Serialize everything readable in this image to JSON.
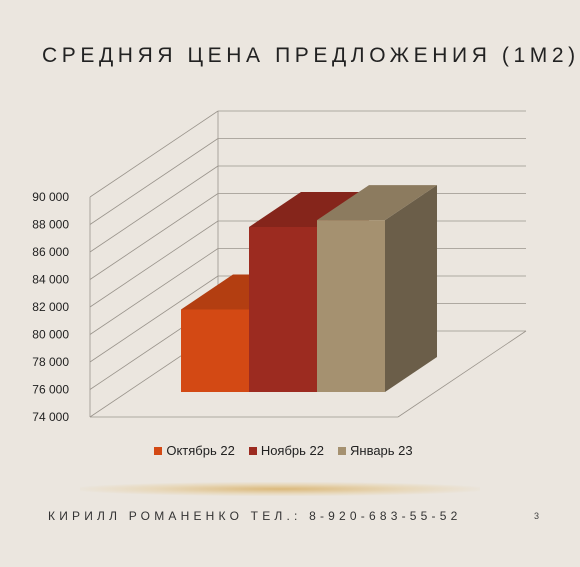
{
  "slide": {
    "title": "СРЕДНЯЯ ЦЕНА ПРЕДЛОЖЕНИЯ (1М2)",
    "footer": "КИРИЛЛ РОМАНЕНКО ТЕЛ.: 8-920-683-55-52",
    "page_number": "3"
  },
  "chart_data": {
    "type": "bar",
    "title": "",
    "xlabel": "",
    "ylabel": "",
    "ylim": [
      74000,
      90000
    ],
    "yticks": [
      74000,
      76000,
      78000,
      80000,
      82000,
      84000,
      86000,
      88000,
      90000
    ],
    "ytick_labels": [
      "74 000",
      "76 000",
      "78 000",
      "80 000",
      "82 000",
      "84 000",
      "86 000",
      "88 000",
      "90 000"
    ],
    "grid": true,
    "legend_position": "bottom",
    "series": [
      {
        "name": "Октябрь 22",
        "value": 80000,
        "color": "#d34914"
      },
      {
        "name": "Ноябрь 22",
        "value": 86000,
        "color": "#9c2b20"
      },
      {
        "name": "Январь 23",
        "value": 86500,
        "color": "#a59170"
      }
    ]
  }
}
